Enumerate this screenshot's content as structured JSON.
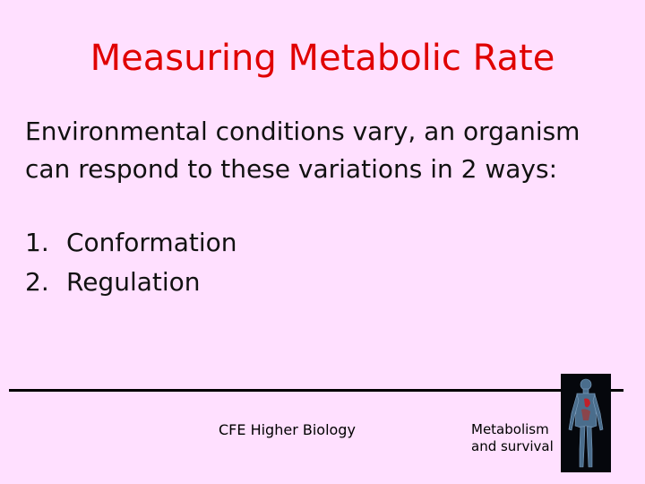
{
  "slide": {
    "title": "Measuring Metabolic Rate",
    "body_lines": [
      "Environmental conditions vary, an organism",
      "can respond to these variations in 2 ways:"
    ],
    "list": [
      {
        "marker": "1.",
        "text": "Conformation"
      },
      {
        "marker": "2.",
        "text": "Regulation"
      }
    ],
    "footer": {
      "center": "CFE Higher Biology",
      "right_lines": [
        "Metabolism",
        "and survival"
      ]
    }
  }
}
